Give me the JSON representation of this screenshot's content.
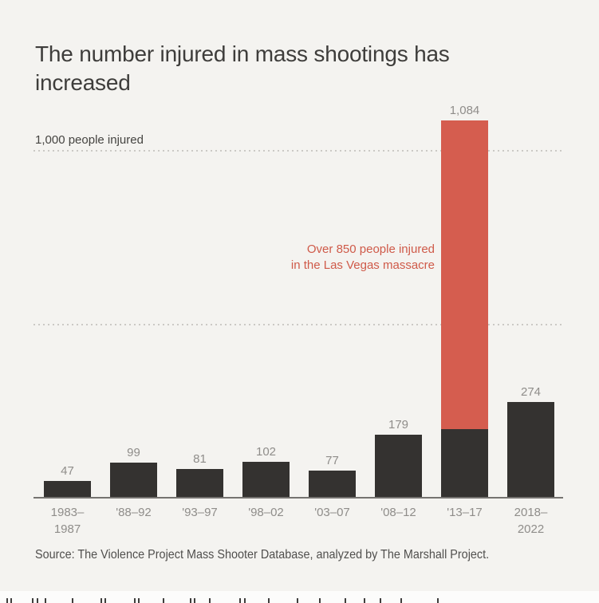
{
  "title": "The number injured in mass shootings has increased",
  "y_reference_label": "1,000 people injured",
  "annotation": {
    "line1": "Over 850 people injured",
    "line2": "in the Las Vegas massacre"
  },
  "source": "Source: The Violence Project Mass Shooter Database, analyzed by The Marshall Project.",
  "colors": {
    "background": "#f4f3f0",
    "bar": "#343230",
    "highlight": "#d55d4f",
    "annotation_text": "#cf5a49",
    "label_gray": "#8f8d8a",
    "title_text": "#3e3d3b",
    "axis_line": "#757370",
    "gridline": "#cbc9c5"
  },
  "chart_data": {
    "type": "bar",
    "title": "The number injured in mass shootings has increased",
    "categories": [
      "1983–1987",
      "'88–92",
      "'93–97",
      "'98–02",
      "'03–07",
      "'08–12",
      "'13–17",
      "2018–2022"
    ],
    "values": [
      47,
      99,
      81,
      102,
      77,
      179,
      1084,
      274
    ],
    "value_labels": [
      "47",
      "99",
      "81",
      "102",
      "77",
      "179",
      "1,084",
      "274"
    ],
    "tick_label_lines": [
      [
        "1983–",
        "1987"
      ],
      [
        "'88–92"
      ],
      [
        "'93–97"
      ],
      [
        "'98–02"
      ],
      [
        "'03–07"
      ],
      [
        "'08–12"
      ],
      [
        "'13–17"
      ],
      [
        "2018–",
        "2022"
      ]
    ],
    "xlabel": "",
    "ylabel": "1,000 people injured",
    "ylim": [
      0,
      1120
    ],
    "gridlines_at": [
      500,
      1000
    ],
    "gridline_labels": [
      "",
      "1,000 people injured"
    ],
    "legend": "none",
    "highlight": {
      "index": 6,
      "category": "'13–17",
      "base_value": 195,
      "highlight_value": 889,
      "annotation": "Over 850 people injured in the Las Vegas massacre",
      "color": "#d55d4f"
    }
  }
}
